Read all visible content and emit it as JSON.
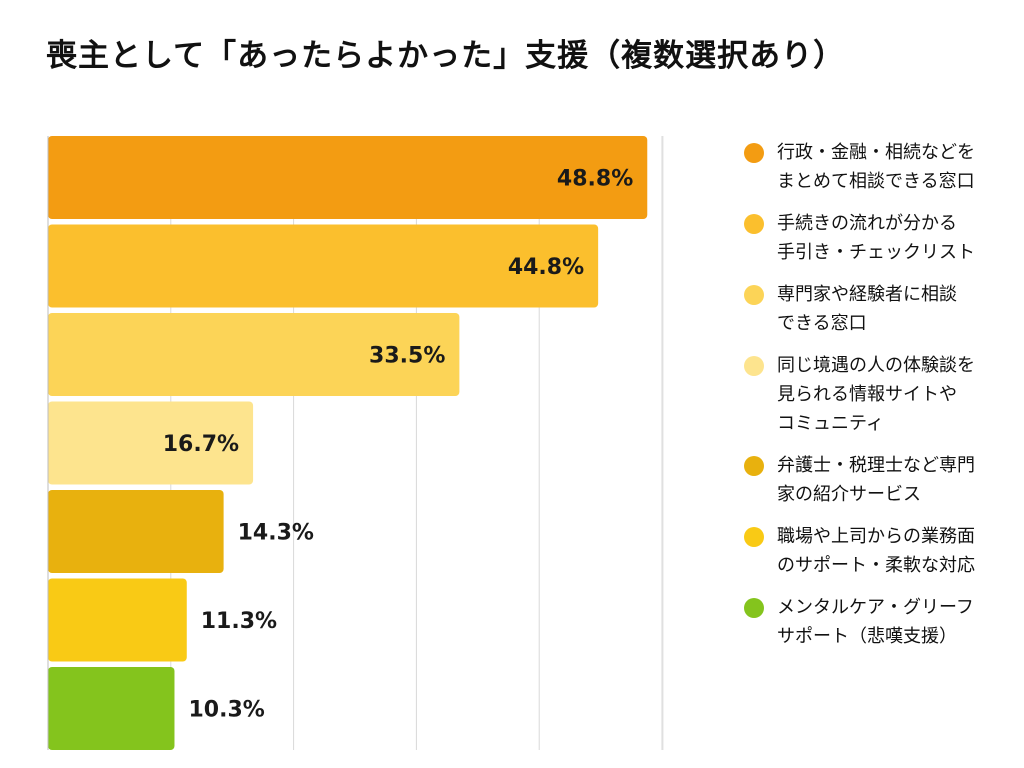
{
  "title": "喪主として「あったらよかった」支援（複数選択あり）",
  "chart_data": {
    "type": "bar",
    "orientation": "horizontal",
    "title": "喪主として「あったらよかった」支援（複数選択あり）",
    "xlabel": "",
    "ylabel": "",
    "xlim": [
      0,
      50
    ],
    "grid": true,
    "legend_position": "right",
    "categories": [
      [
        "行政・金融・相続などを",
        "まとめて相談できる窓口"
      ],
      [
        "手続きの流れが分かる",
        "手引き・チェックリスト"
      ],
      [
        "専門家や経験者に相談",
        "できる窓口"
      ],
      [
        "同じ境遇の人の体験談を",
        "見られる情報サイトや",
        "コミュニティ"
      ],
      [
        "弁護士・税理士など専門",
        "家の紹介サービス"
      ],
      [
        "職場や上司からの業務面",
        "のサポート・柔軟な対応"
      ],
      [
        "メンタルケア・グリーフ",
        "サポート（悲嘆支援）"
      ]
    ],
    "values": [
      48.8,
      44.8,
      33.5,
      16.7,
      14.3,
      11.3,
      10.3
    ],
    "value_labels": [
      "48.8%",
      "44.8%",
      "33.5%",
      "16.7%",
      "14.3%",
      "11.3%",
      "10.3%"
    ],
    "colors": [
      "#F39C12",
      "#FBBF2D",
      "#FCD457",
      "#FDE48E",
      "#E8B10E",
      "#F9CA15",
      "#84C41D"
    ]
  }
}
